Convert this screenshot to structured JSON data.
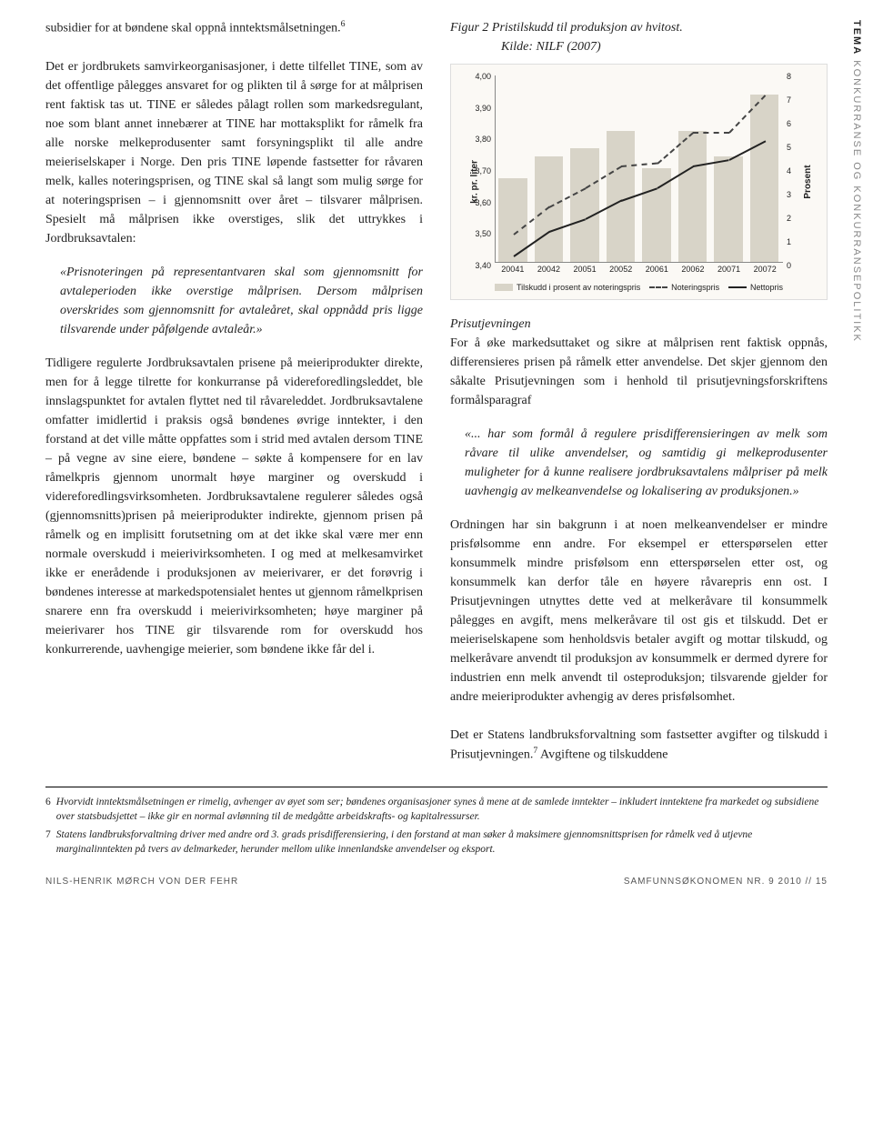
{
  "sidebar": {
    "tema": "TEMA",
    "category": "KONKURRANSE OG KONKURRANSEPOLITIKK"
  },
  "left": {
    "p1": "subsidier for at bøndene skal oppnå inntektsmålsetningen.",
    "sup1": "6",
    "p2": "Det er jordbrukets samvirkeorganisasjoner, i dette tilfellet TINE, som av det offentlige pålegges ansvaret for og plikten til å sørge for at målprisen rent faktisk tas ut. TINE er således pålagt rollen som markedsregulant, noe som blant annet innebærer at TINE har mottaksplikt for råmelk fra alle norske melkeprodusenter samt forsyningsplikt til alle andre meieriselskaper i Norge. Den pris TINE løpende fastsetter for råvaren melk, kalles noteringsprisen, og TINE skal så langt som mulig sørge for at noteringsprisen – i gjennomsnitt over året – tilsvarer målprisen. Spesielt må målprisen ikke overstiges, slik det uttrykkes i Jordbruksavtalen:",
    "quote1": "«Prisnoteringen på representantvaren skal som gjennomsnitt for avtaleperioden ikke overstige målprisen. Dersom målprisen overskrides som gjennomsnitt for avtaleåret, skal oppnådd pris ligge tilsvarende under påfølgende avtaleår.»",
    "p3": "Tidligere regulerte Jordbruksavtalen prisene på meieriprodukter direkte, men for å legge tilrette for konkurranse på videreforedlingsleddet, ble innslagspunktet for avtalen flyttet ned til råvareleddet. Jordbruksavtalene omfatter imidlertid i praksis også bøndenes øvrige inntekter, i den forstand at det ville måtte oppfattes som i strid med avtalen dersom TINE – på vegne av sine eiere, bøndene – søkte å kompensere for en lav råmelkpris gjennom unormalt høye marginer og overskudd i videreforedlingsvirksomheten. Jordbruksavtalene regulerer således også (gjennomsnitts)prisen på meieriprodukter indirekte, gjennom prisen på råmelk og en implisitt forutsetning om at det ikke skal være mer enn normale overskudd i meierivirksomheten. I og med at melkesamvirket ikke er enerådende i produksjonen av meierivarer, er det forøvrig i bøndenes interesse at markedspotensialet hentes ut gjennom råmelkprisen snarere enn fra overskudd i meierivirksomheten; høye marginer på meierivarer hos TINE gir tilsvarende rom for overskudd hos konkurrerende, uavhengige meierier, som bøndene ikke får del i."
  },
  "right": {
    "fig_caption1": "Figur 2  Pristilskudd til produksjon av hvitost.",
    "fig_caption2": "Kilde: NILF (2007)",
    "heading1": "Prisutjevningen",
    "p1": "For å øke markedsuttaket og sikre at målprisen rent faktisk oppnås, differensieres prisen på råmelk etter anvendelse. Det skjer gjennom den såkalte Prisutjevningen som i henhold til prisutjevningsforskriftens formålsparagraf",
    "quote1": "«... har som formål å regulere prisdifferensieringen av melk som råvare til ulike anvendelser, og samtidig gi melkeprodusenter muligheter for å kunne realisere jordbruksavtalens målpriser på melk uavhengig av melkeanvendelse og lokalisering av produksjonen.»",
    "p2a": "Ordningen har sin bakgrunn i at noen melkeanvendelser er mindre prisfølsomme enn andre. For eksempel er etterspørselen etter konsummelk mindre prisfølsom enn etterspørselen etter ost, og konsummelk kan derfor tåle en høyere råvarepris enn ost. I Prisutjevningen utnyttes dette ved at melkeråvare til konsummelk pålegges en avgift, mens melkeråvare til ost gis et tilskudd. Det er meieriselskapene som henholdsvis betaler avgift og mottar tilskudd, og melkeråvare anvendt til produksjon av konsummelk er dermed dyrere for industrien enn melk anvendt til osteproduksjon; tilsvarende gjelder for andre meieriprodukter avhengig av deres prisfølsomhet.",
    "p2b": "Det er Statens landbruksforvaltning som fastsetter avgifter og tilskudd i Prisutjevningen.",
    "sup2": "7",
    "p2c": " Avgiftene og tilskuddene"
  },
  "chart": {
    "ylabel_left": "kr. pr. liter",
    "ylabel_right": "Prosent",
    "left_ticks": [
      "4,00",
      "3,90",
      "3,80",
      "3,70",
      "3,60",
      "3,50",
      "3,40"
    ],
    "right_ticks": [
      "8",
      "7",
      "6",
      "5",
      "4",
      "3",
      "2",
      "1",
      "0"
    ],
    "x_labels": [
      "20041",
      "20042",
      "20051",
      "20052",
      "20061",
      "20062",
      "20071",
      "20072"
    ],
    "bars_pct_of_max": [
      50,
      63,
      68,
      78,
      56,
      78,
      63,
      100
    ],
    "notering_line": [
      3.49,
      3.58,
      3.64,
      3.71,
      3.72,
      3.82,
      3.82,
      3.94
    ],
    "netto_line": [
      3.42,
      3.5,
      3.54,
      3.6,
      3.64,
      3.71,
      3.73,
      3.79
    ],
    "left_min": 3.4,
    "left_max": 4.0,
    "bar_color": "#d8d4c8",
    "line1_color": "#444444",
    "line2_color": "#222222",
    "legend": [
      "Tilskudd i prosent av noteringspris",
      "Noteringspris",
      "Nettopris"
    ]
  },
  "footnotes": {
    "f6n": "6",
    "f6": "Hvorvidt inntektsmålsetningen er rimelig, avhenger av øyet som ser; bøndenes organisasjoner synes å mene at de samlede inntekter – inkludert inntektene fra markedet og subsidiene over statsbudsjettet – ikke gir en normal avlønning til de medgåtte arbeidskrafts- og kapitalressurser.",
    "f7n": "7",
    "f7": "Statens landbruksforvaltning driver med andre ord 3. grads prisdifferensiering, i den forstand at man søker å maksimere gjennomsnittsprisen for råmelk ved å utjevne marginalinntekten på tvers av delmarkeder, herunder mellom ulike innenlandske anvendelser og eksport."
  },
  "footer": {
    "author": "NILS-HENRIK MØRCH VON DER FEHR",
    "pub": "SAMFUNNSØKONOMEN NR. 9 2010 // 15"
  }
}
